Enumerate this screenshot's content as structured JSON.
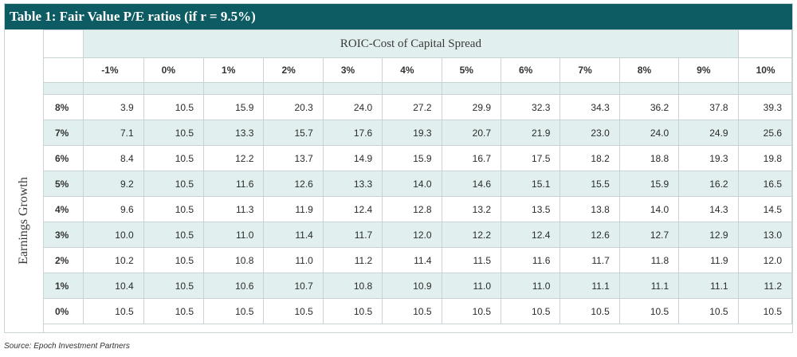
{
  "title": "Table 1: Fair Value P/E ratios (if r = 9.5%)",
  "spread_header": "ROIC-Cost of Capital Spread",
  "row_axis_label": "Earnings Growth",
  "columns": [
    "-1%",
    "0%",
    "1%",
    "2%",
    "3%",
    "4%",
    "5%",
    "6%",
    "7%",
    "8%",
    "9%",
    "10%"
  ],
  "rows": [
    {
      "label": "8%",
      "values": [
        "3.9",
        "10.5",
        "15.9",
        "20.3",
        "24.0",
        "27.2",
        "29.9",
        "32.3",
        "34.3",
        "36.2",
        "37.8",
        "39.3"
      ]
    },
    {
      "label": "7%",
      "values": [
        "7.1",
        "10.5",
        "13.3",
        "15.7",
        "17.6",
        "19.3",
        "20.7",
        "21.9",
        "23.0",
        "24.0",
        "24.9",
        "25.6"
      ]
    },
    {
      "label": "6%",
      "values": [
        "8.4",
        "10.5",
        "12.2",
        "13.7",
        "14.9",
        "15.9",
        "16.7",
        "17.5",
        "18.2",
        "18.8",
        "19.3",
        "19.8"
      ]
    },
    {
      "label": "5%",
      "values": [
        "9.2",
        "10.5",
        "11.6",
        "12.6",
        "13.3",
        "14.0",
        "14.6",
        "15.1",
        "15.5",
        "15.9",
        "16.2",
        "16.5"
      ]
    },
    {
      "label": "4%",
      "values": [
        "9.6",
        "10.5",
        "11.3",
        "11.9",
        "12.4",
        "12.8",
        "13.2",
        "13.5",
        "13.8",
        "14.0",
        "14.3",
        "14.5"
      ]
    },
    {
      "label": "3%",
      "values": [
        "10.0",
        "10.5",
        "11.0",
        "11.4",
        "11.7",
        "12.0",
        "12.2",
        "12.4",
        "12.6",
        "12.7",
        "12.9",
        "13.0"
      ]
    },
    {
      "label": "2%",
      "values": [
        "10.2",
        "10.5",
        "10.8",
        "11.0",
        "11.2",
        "11.4",
        "11.5",
        "11.6",
        "11.7",
        "11.8",
        "11.9",
        "12.0"
      ]
    },
    {
      "label": "1%",
      "values": [
        "10.4",
        "10.5",
        "10.6",
        "10.7",
        "10.8",
        "10.9",
        "11.0",
        "11.0",
        "11.1",
        "11.1",
        "11.1",
        "11.2"
      ]
    },
    {
      "label": "0%",
      "values": [
        "10.5",
        "10.5",
        "10.5",
        "10.5",
        "10.5",
        "10.5",
        "10.5",
        "10.5",
        "10.5",
        "10.5",
        "10.5",
        "10.5"
      ]
    }
  ],
  "source": "Source: Epoch Investment Partners",
  "colors": {
    "title_bg": "#0e5c63",
    "shade": "#e1efee",
    "border": "#c9d3d5"
  }
}
